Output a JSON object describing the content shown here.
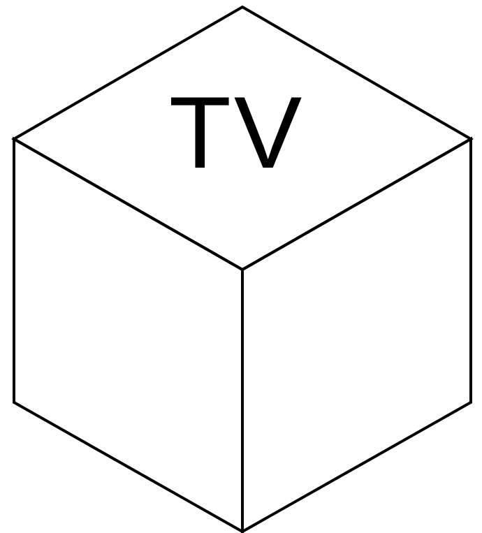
{
  "figure": {
    "label": "TV",
    "colors": {
      "stroke": "#000000",
      "text": "#000000",
      "background": "#ffffff"
    }
  }
}
